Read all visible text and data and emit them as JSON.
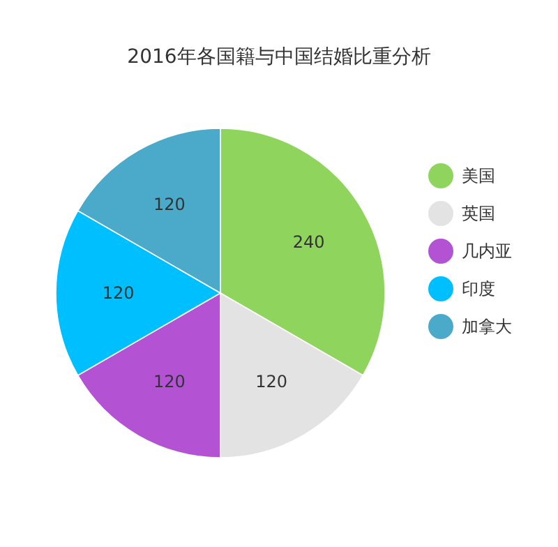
{
  "chart_data": {
    "type": "pie",
    "title": "2016年各国籍与中国结婚比重分析",
    "categories": [
      "美国",
      "英国",
      "几内亚",
      "印度",
      "加拿大"
    ],
    "values": [
      240,
      120,
      120,
      120,
      120
    ],
    "colors": [
      "#8fd45c",
      "#e3e3e3",
      "#b452d4",
      "#00bfff",
      "#4ba9c9"
    ],
    "data_labels": true,
    "legend": "right"
  }
}
